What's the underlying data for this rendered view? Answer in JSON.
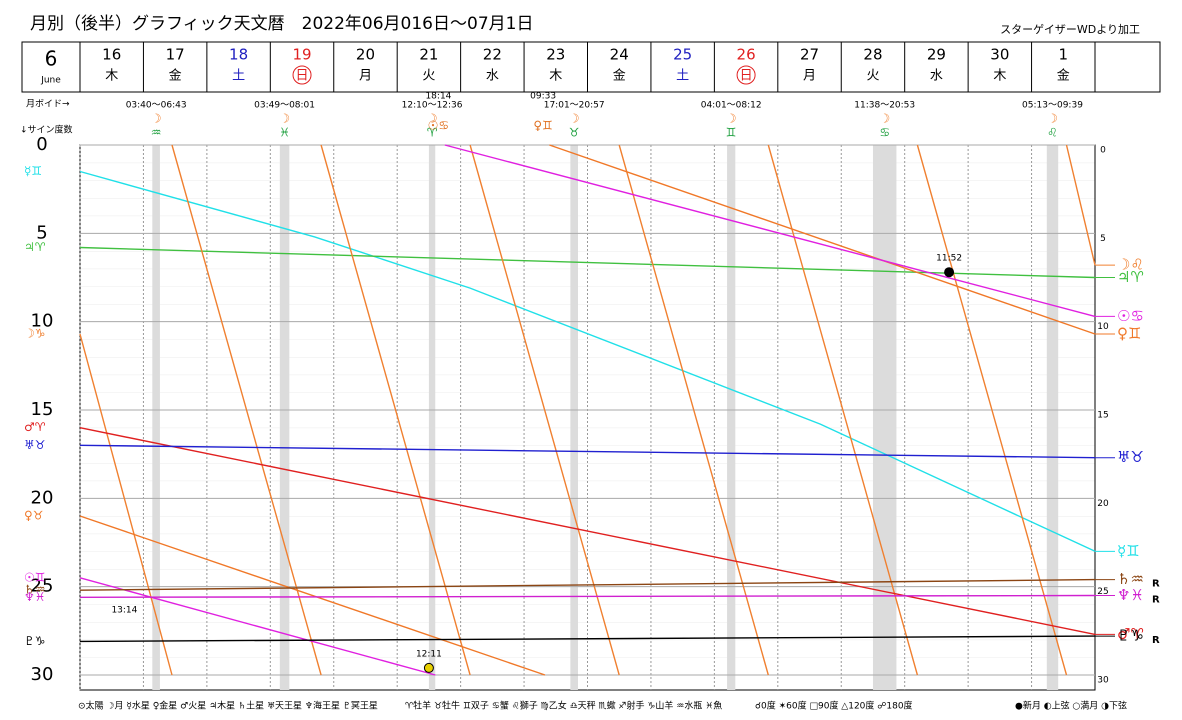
{
  "chart_data": {
    "type": "line",
    "title": "月別（後半）グラフィック天文暦　2022年06月016日〜07月1日",
    "credit": "スターゲイザーWDより加工",
    "month": "6",
    "month_name": "June",
    "categories": [
      "16",
      "17",
      "18",
      "19",
      "20",
      "21",
      "22",
      "23",
      "24",
      "25",
      "26",
      "27",
      "28",
      "29",
      "30",
      "1"
    ],
    "weekdays": [
      "木",
      "金",
      "土",
      "日",
      "月",
      "火",
      "水",
      "木",
      "金",
      "土",
      "日",
      "月",
      "火",
      "水",
      "木",
      "金"
    ],
    "weekday_colors": [
      "#000",
      "#000",
      "#2020c0",
      "#e02020",
      "#000",
      "#000",
      "#000",
      "#000",
      "#000",
      "#2020c0",
      "#e02020",
      "#000",
      "#000",
      "#000",
      "#000",
      "#000"
    ],
    "circled": [
      3,
      10
    ],
    "void_label": "月ボイド→",
    "axis_label": "↓サイン度数",
    "xlim": [
      0,
      16
    ],
    "ylim": [
      0,
      30
    ],
    "yticks": [
      0,
      5,
      10,
      15,
      20,
      25,
      30
    ],
    "grid": true,
    "voids": [
      {
        "label": "03:40〜06:43",
        "x": [
          1.14,
          1.26
        ],
        "planet": "☽",
        "sign": "♒"
      },
      {
        "label": "03:49〜08:01",
        "x": [
          3.15,
          3.3
        ],
        "planet": "☽",
        "sign": "♓"
      },
      {
        "label": "12:10〜12:36",
        "x": [
          5.5,
          5.6
        ],
        "planet": "☽",
        "sign": "♈"
      },
      {
        "label": "17:01〜20:57",
        "x": [
          7.73,
          7.85
        ],
        "planet": "☽",
        "sign": "♉"
      },
      {
        "label": "04:01〜08:12",
        "x": [
          10.2,
          10.33
        ],
        "planet": "☽",
        "sign": "♊"
      },
      {
        "label": "11:38〜20:53",
        "x": [
          12.5,
          12.87
        ],
        "planet": "☽",
        "sign": "♋"
      },
      {
        "label": "05:13〜09:39",
        "x": [
          15.24,
          15.42
        ],
        "planet": "☽",
        "sign": "♌"
      }
    ],
    "ingresses": [
      {
        "time": "18:14",
        "label": "☉♋",
        "x": 5.65
      },
      {
        "time": "09:33",
        "label": "♀♊",
        "x": 7.3
      }
    ],
    "series": [
      {
        "name": "☿♊",
        "end_label": "☿♊",
        "color": "#20e0e8",
        "x": [
          0,
          3.7,
          6.15,
          11.67,
          16
        ],
        "values": [
          1.5,
          5.2,
          8.1,
          15.8,
          23
        ]
      },
      {
        "name": "♃♈",
        "end_label": "♃♈",
        "color": "#40c040",
        "x": [
          0,
          16
        ],
        "values": [
          5.8,
          7.5
        ]
      },
      {
        "name": "☽♑",
        "end_label": "☽♌",
        "color": "#f08030",
        "x": [
          0,
          1.45,
          null,
          1.45,
          3.8,
          null,
          3.8,
          6.15,
          null,
          6.15,
          8.5,
          null,
          8.5,
          10.85,
          null,
          10.85,
          13.2,
          null,
          13.2,
          15.55,
          null,
          15.55,
          16
        ],
        "values": [
          10.7,
          30,
          null,
          0,
          30,
          null,
          0,
          30,
          null,
          0,
          30,
          null,
          0,
          30,
          null,
          0,
          30,
          null,
          0,
          30,
          null,
          0,
          6.8
        ]
      },
      {
        "name": "♂♈",
        "end_label": "♂♈",
        "color": "#e02020",
        "x": [
          0,
          16
        ],
        "values": [
          16,
          27.7
        ]
      },
      {
        "name": "♅♉",
        "end_label": "♅♉",
        "color": "#2020d0",
        "x": [
          0,
          16
        ],
        "values": [
          17,
          17.7
        ]
      },
      {
        "name": "♀♉",
        "end_label": "♀♊",
        "color": "#f07828",
        "x": [
          0,
          7.33,
          null,
          7.4,
          16
        ],
        "values": [
          21,
          30,
          null,
          0,
          10.7
        ]
      },
      {
        "name": "☉♊",
        "end_label": "☉♋",
        "color": "#e020e0",
        "x": [
          0,
          5.6,
          null,
          5.75,
          16
        ],
        "values": [
          24.5,
          30,
          null,
          0,
          9.7
        ]
      },
      {
        "name": "♄♒",
        "end_label": "♄♒",
        "retro": "R",
        "color": "#8b4513",
        "x": [
          0,
          16
        ],
        "values": [
          25.2,
          24.6
        ]
      },
      {
        "name": "♆♓",
        "end_label": "♆♓",
        "retro": "R",
        "color": "#d020d0",
        "x": [
          0,
          16
        ],
        "values": [
          25.6,
          25.5
        ]
      },
      {
        "name": "♇♑",
        "end_label": "♇♑",
        "retro": "R",
        "color": "#000000",
        "x": [
          0,
          16
        ],
        "values": [
          28.1,
          27.8
        ]
      }
    ],
    "phases": [
      {
        "label": "11:52",
        "x": 13.7,
        "value": 7.2,
        "color": "#000"
      },
      {
        "label": "12:11",
        "x": 5.5,
        "value": 29.6,
        "color": "#e8d000"
      },
      {
        "label": "13:14",
        "x": 0.7,
        "value": 26.1
      }
    ],
    "legend": [
      "⊙太陽 ☽月 ☿水星 ♀金星 ♂火星 ♃木星 ♄土星 ♅天王星 ♆海王星 ♇冥王星",
      "♈牡羊 ♉牡牛 ♊双子 ♋蟹 ♌獅子 ♍乙女 ♎天秤 ♏蠍 ♐射手 ♑山羊 ♒水瓶 ♓魚",
      "☌0度 ✶60度 □90度 △120度 ☍180度",
      "●新月 ◐上弦 ○満月 ◑下弦"
    ]
  }
}
